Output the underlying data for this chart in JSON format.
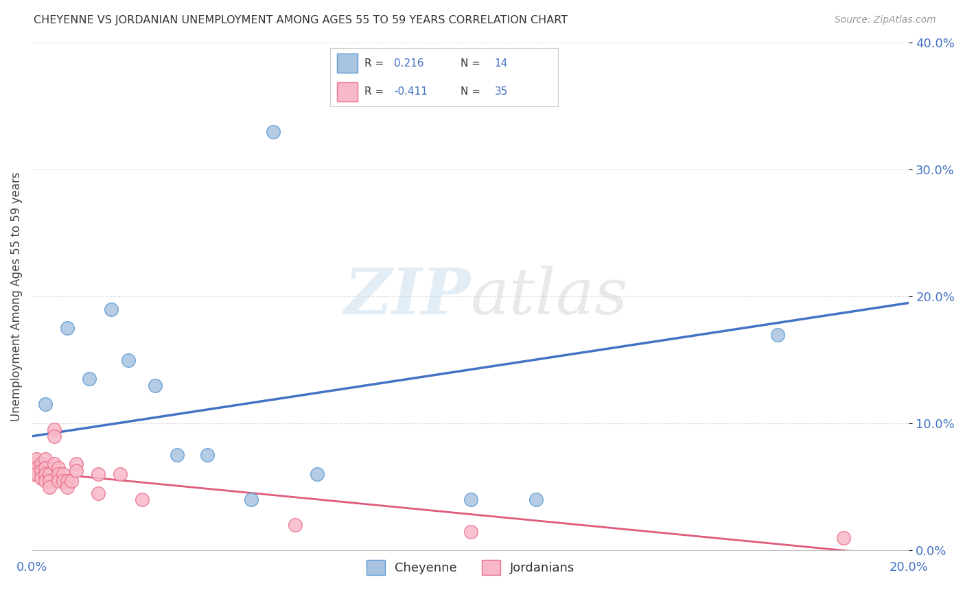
{
  "title": "CHEYENNE VS JORDANIAN UNEMPLOYMENT AMONG AGES 55 TO 59 YEARS CORRELATION CHART",
  "source": "Source: ZipAtlas.com",
  "ylabel": "Unemployment Among Ages 55 to 59 years",
  "xlim": [
    0.0,
    0.2
  ],
  "ylim": [
    0.0,
    0.4
  ],
  "xticks": [
    0.0,
    0.05,
    0.1,
    0.15,
    0.2
  ],
  "xticklabels": [
    "0.0%",
    "",
    "",
    "",
    "20.0%"
  ],
  "yticks": [
    0.0,
    0.1,
    0.2,
    0.3,
    0.4
  ],
  "yticklabels": [
    "0.0%",
    "10.0%",
    "20.0%",
    "30.0%",
    "40.0%"
  ],
  "cheyenne_color": "#a8c4e0",
  "cheyenne_edge": "#5b9bd5",
  "jordanian_color": "#f9b8c8",
  "jordanian_edge": "#e8708a",
  "trendline_cheyenne": "#4472c4",
  "trendline_jordanian": "#e05a7a",
  "cheyenne_R": 0.216,
  "cheyenne_N": 14,
  "jordanian_R": -0.411,
  "jordanian_N": 35,
  "cheyenne_points": [
    [
      0.003,
      0.115
    ],
    [
      0.008,
      0.175
    ],
    [
      0.013,
      0.135
    ],
    [
      0.018,
      0.19
    ],
    [
      0.022,
      0.15
    ],
    [
      0.028,
      0.13
    ],
    [
      0.033,
      0.075
    ],
    [
      0.04,
      0.075
    ],
    [
      0.05,
      0.04
    ],
    [
      0.055,
      0.33
    ],
    [
      0.065,
      0.06
    ],
    [
      0.1,
      0.04
    ],
    [
      0.115,
      0.04
    ],
    [
      0.17,
      0.17
    ]
  ],
  "jordanian_points": [
    [
      0.0,
      0.06
    ],
    [
      0.0,
      0.068
    ],
    [
      0.001,
      0.072
    ],
    [
      0.001,
      0.065
    ],
    [
      0.001,
      0.06
    ],
    [
      0.002,
      0.068
    ],
    [
      0.002,
      0.063
    ],
    [
      0.002,
      0.057
    ],
    [
      0.003,
      0.072
    ],
    [
      0.003,
      0.065
    ],
    [
      0.003,
      0.06
    ],
    [
      0.003,
      0.055
    ],
    [
      0.004,
      0.06
    ],
    [
      0.004,
      0.055
    ],
    [
      0.004,
      0.05
    ],
    [
      0.005,
      0.095
    ],
    [
      0.005,
      0.09
    ],
    [
      0.005,
      0.068
    ],
    [
      0.006,
      0.065
    ],
    [
      0.006,
      0.06
    ],
    [
      0.006,
      0.055
    ],
    [
      0.007,
      0.06
    ],
    [
      0.007,
      0.055
    ],
    [
      0.008,
      0.055
    ],
    [
      0.008,
      0.05
    ],
    [
      0.009,
      0.055
    ],
    [
      0.01,
      0.068
    ],
    [
      0.01,
      0.063
    ],
    [
      0.015,
      0.06
    ],
    [
      0.015,
      0.045
    ],
    [
      0.02,
      0.06
    ],
    [
      0.025,
      0.04
    ],
    [
      0.06,
      0.02
    ],
    [
      0.1,
      0.015
    ],
    [
      0.185,
      0.01
    ]
  ],
  "watermark_zip": "ZIP",
  "watermark_atlas": "atlas",
  "background_color": "#ffffff",
  "grid_color": "#dddddd"
}
